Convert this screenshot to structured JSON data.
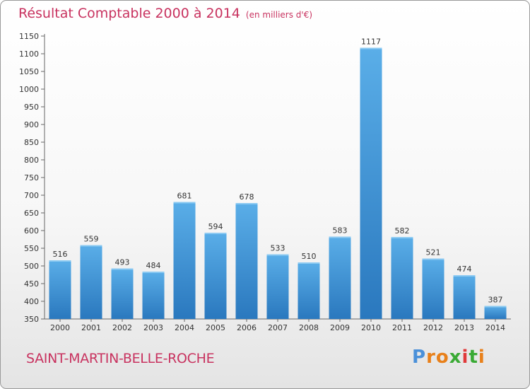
{
  "chart_data": {
    "type": "bar",
    "title": "Résultat Comptable 2000 à 2014",
    "unit": "(en milliers d'€)",
    "categories": [
      "2000",
      "2001",
      "2002",
      "2003",
      "2004",
      "2005",
      "2006",
      "2007",
      "2008",
      "2009",
      "2010",
      "2011",
      "2012",
      "2013",
      "2014"
    ],
    "values": [
      516,
      559,
      493,
      484,
      681,
      594,
      678,
      533,
      510,
      583,
      1117,
      582,
      521,
      474,
      387
    ],
    "ylim": [
      350,
      1150
    ],
    "ytick_step": 50,
    "grid": false,
    "bar_color": "#3f97da",
    "xlabel": "",
    "ylabel": ""
  },
  "commune": "SAINT-MARTIN-BELLE-ROCHE",
  "brand": {
    "letters": [
      "P",
      "r",
      "o",
      "x",
      "i",
      "t",
      "i"
    ],
    "colors": [
      "#4a90d9",
      "#e8801a",
      "#e8801a",
      "#3aaa35",
      "#e03a3a",
      "#3aaa35",
      "#e8801a"
    ]
  },
  "colors": {
    "accent": "#c8325f"
  }
}
